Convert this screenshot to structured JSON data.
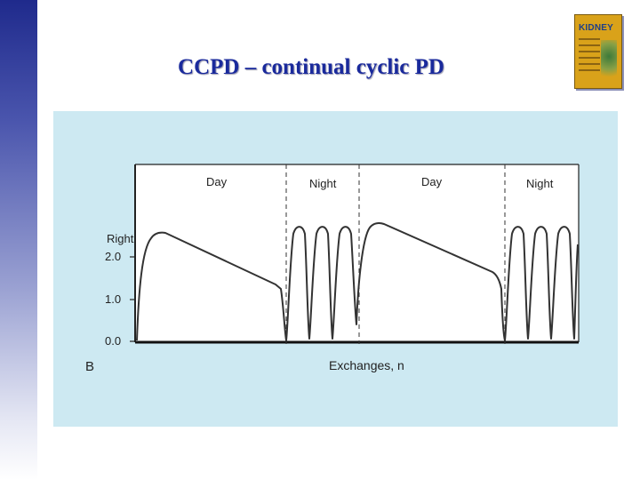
{
  "slide": {
    "title": "CCPD – continual cyclic PD"
  },
  "book": {
    "title": "KIDNEY"
  },
  "figure": {
    "panel_letter": "B",
    "y_axis_title": "Right",
    "y_ticks": [
      "2.0",
      "1.0",
      "0.0"
    ],
    "x_axis_title": "Exchanges, n",
    "period_labels": [
      "Day",
      "Night",
      "Day",
      "Night"
    ]
  }
}
